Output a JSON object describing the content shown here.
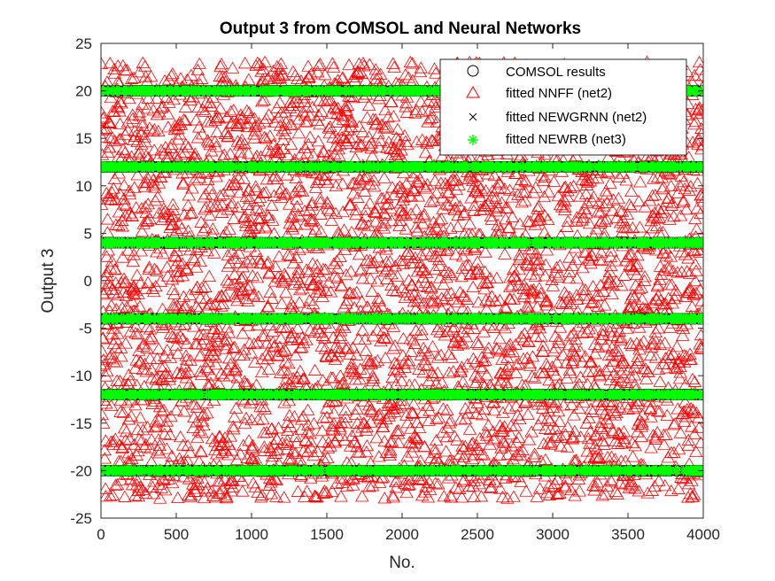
{
  "chart_data": {
    "type": "scatter",
    "title": "Output 3 from COMSOL and Neural Networks",
    "xlabel": "No.",
    "ylabel": "Output 3",
    "xlim": [
      0,
      4000
    ],
    "ylim": [
      -25,
      25
    ],
    "xticks": [
      "0",
      "500",
      "1000",
      "1500",
      "2000",
      "2500",
      "3000",
      "3500",
      "4000"
    ],
    "yticks": [
      "-25",
      "-20",
      "-15",
      "-10",
      "-5",
      "0",
      "5",
      "10",
      "15",
      "20",
      "25"
    ],
    "grid": false,
    "legend_location": "top-right",
    "n_points": 4000,
    "levels": [
      -20,
      -12,
      -4,
      4,
      12,
      20
    ],
    "nnff_spread": [
      -23,
      23
    ],
    "series": [
      {
        "name": "COMSOL results",
        "marker": "circle",
        "color": "#000000"
      },
      {
        "name": "fitted NNFF (net2)",
        "marker": "triangle",
        "color": "#ff0000"
      },
      {
        "name": "fitted NEWGRNN (net2)",
        "marker": "x",
        "color": "#000000"
      },
      {
        "name": "fitted NEWRB (net3)",
        "marker": "star",
        "color": "#00ff00"
      }
    ]
  }
}
